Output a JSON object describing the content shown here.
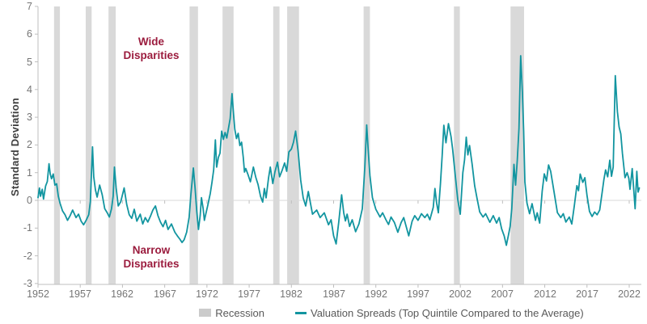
{
  "colors": {
    "line_teal": "#1295A0",
    "recession_gray": "#D9D9D9",
    "legend_swatch_gray": "#CBCBCB",
    "annotation_maroon": "#9B1C3E",
    "axis_line": "#BFBFBF",
    "tick_label": "#757575",
    "axis_title": "#3F3F3F",
    "legend_text": "#595959",
    "zero_line": "#D9D9D9",
    "background": "#FFFFFF"
  },
  "legend": {
    "recession_label": "Recession",
    "series_label": "Valuation Spreads (Top Quintile Compared to the Average)"
  },
  "annotations": {
    "wide": {
      "line1": "Wide",
      "line2": "Disparities"
    },
    "narrow": {
      "line1": "Narrow",
      "line2": "Disparities"
    }
  },
  "chart_data": {
    "type": "line",
    "title": "",
    "xlabel": "",
    "ylabel": "Standard Deviation",
    "ylim": [
      -3,
      7
    ],
    "y_ticks": [
      7,
      6,
      5,
      4,
      3,
      2,
      1,
      0,
      -1,
      -2,
      -3
    ],
    "xlim": [
      1952,
      2023.5
    ],
    "x_ticks": [
      1952,
      1957,
      1962,
      1967,
      1972,
      1977,
      1982,
      1987,
      1992,
      1997,
      2002,
      2007,
      2012,
      2017,
      2022
    ],
    "grid": "zero-line-only",
    "legend_position": "bottom",
    "recession_bands": [
      [
        1953.9,
        1954.6
      ],
      [
        1957.65,
        1958.35
      ],
      [
        1960.35,
        1961.2
      ],
      [
        1969.95,
        1970.95
      ],
      [
        1973.85,
        1975.15
      ],
      [
        1979.85,
        1980.6
      ],
      [
        1981.5,
        1982.9
      ],
      [
        1990.55,
        1991.3
      ],
      [
        2001.25,
        2001.95
      ],
      [
        2007.95,
        2009.55
      ]
    ],
    "series": [
      {
        "name": "Valuation Spreads (Top Quintile Compared to the Average)",
        "color_key": "line_teal",
        "points": [
          [
            1952.0,
            0.1
          ],
          [
            1952.17,
            0.45
          ],
          [
            1952.3,
            0.15
          ],
          [
            1952.5,
            0.4
          ],
          [
            1952.65,
            0.05
          ],
          [
            1952.9,
            0.52
          ],
          [
            1953.1,
            0.68
          ],
          [
            1953.3,
            1.32
          ],
          [
            1953.45,
            0.95
          ],
          [
            1953.6,
            0.78
          ],
          [
            1953.8,
            0.95
          ],
          [
            1954.0,
            0.55
          ],
          [
            1954.2,
            0.6
          ],
          [
            1954.4,
            0.15
          ],
          [
            1954.6,
            -0.1
          ],
          [
            1954.9,
            -0.38
          ],
          [
            1955.2,
            -0.52
          ],
          [
            1955.5,
            -0.72
          ],
          [
            1955.8,
            -0.55
          ],
          [
            1956.1,
            -0.35
          ],
          [
            1956.5,
            -0.62
          ],
          [
            1956.8,
            -0.5
          ],
          [
            1957.1,
            -0.75
          ],
          [
            1957.4,
            -0.88
          ],
          [
            1957.7,
            -0.72
          ],
          [
            1958.0,
            -0.52
          ],
          [
            1958.2,
            -0.05
          ],
          [
            1958.45,
            1.93
          ],
          [
            1958.6,
            0.85
          ],
          [
            1958.8,
            0.38
          ],
          [
            1959.0,
            0.12
          ],
          [
            1959.3,
            0.55
          ],
          [
            1959.6,
            0.2
          ],
          [
            1959.9,
            -0.3
          ],
          [
            1960.2,
            -0.45
          ],
          [
            1960.45,
            -0.6
          ],
          [
            1960.7,
            -0.3
          ],
          [
            1960.9,
            0.15
          ],
          [
            1961.05,
            1.2
          ],
          [
            1961.25,
            0.45
          ],
          [
            1961.5,
            -0.2
          ],
          [
            1961.8,
            -0.05
          ],
          [
            1962.2,
            0.45
          ],
          [
            1962.5,
            -0.15
          ],
          [
            1962.8,
            -0.52
          ],
          [
            1963.1,
            -0.65
          ],
          [
            1963.4,
            -0.32
          ],
          [
            1963.7,
            -0.75
          ],
          [
            1964.1,
            -0.5
          ],
          [
            1964.4,
            -0.85
          ],
          [
            1964.7,
            -0.62
          ],
          [
            1965.0,
            -0.78
          ],
          [
            1965.3,
            -0.58
          ],
          [
            1965.6,
            -0.35
          ],
          [
            1965.9,
            -0.2
          ],
          [
            1966.2,
            -0.55
          ],
          [
            1966.5,
            -0.78
          ],
          [
            1966.8,
            -0.95
          ],
          [
            1967.1,
            -0.72
          ],
          [
            1967.4,
            -1.05
          ],
          [
            1967.8,
            -0.85
          ],
          [
            1968.2,
            -1.15
          ],
          [
            1968.5,
            -1.28
          ],
          [
            1968.8,
            -1.4
          ],
          [
            1969.05,
            -1.52
          ],
          [
            1969.3,
            -1.42
          ],
          [
            1969.6,
            -1.15
          ],
          [
            1969.9,
            -0.6
          ],
          [
            1970.1,
            0.2
          ],
          [
            1970.4,
            1.17
          ],
          [
            1970.6,
            0.45
          ],
          [
            1970.8,
            -0.4
          ],
          [
            1971.0,
            -1.05
          ],
          [
            1971.2,
            -0.55
          ],
          [
            1971.35,
            0.1
          ],
          [
            1971.55,
            -0.3
          ],
          [
            1971.7,
            -0.72
          ],
          [
            1971.9,
            -0.45
          ],
          [
            1972.1,
            -0.18
          ],
          [
            1972.4,
            0.25
          ],
          [
            1972.6,
            0.65
          ],
          [
            1972.8,
            1.1
          ],
          [
            1973.0,
            2.18
          ],
          [
            1973.15,
            1.2
          ],
          [
            1973.35,
            1.55
          ],
          [
            1973.55,
            1.7
          ],
          [
            1973.75,
            2.5
          ],
          [
            1973.95,
            2.2
          ],
          [
            1974.15,
            2.45
          ],
          [
            1974.35,
            2.25
          ],
          [
            1974.55,
            2.6
          ],
          [
            1974.75,
            2.95
          ],
          [
            1974.97,
            3.85
          ],
          [
            1975.15,
            3.1
          ],
          [
            1975.3,
            2.57
          ],
          [
            1975.5,
            2.23
          ],
          [
            1975.7,
            2.42
          ],
          [
            1975.9,
            1.98
          ],
          [
            1976.1,
            2.1
          ],
          [
            1976.3,
            1.55
          ],
          [
            1976.45,
            1.02
          ],
          [
            1976.6,
            1.15
          ],
          [
            1976.9,
            0.9
          ],
          [
            1977.15,
            0.67
          ],
          [
            1977.5,
            1.2
          ],
          [
            1977.8,
            0.82
          ],
          [
            1978.05,
            0.58
          ],
          [
            1978.35,
            0.14
          ],
          [
            1978.6,
            -0.06
          ],
          [
            1978.8,
            0.43
          ],
          [
            1979.0,
            0.09
          ],
          [
            1979.3,
            0.82
          ],
          [
            1979.5,
            1.2
          ],
          [
            1979.8,
            0.61
          ],
          [
            1980.05,
            1.02
          ],
          [
            1980.35,
            1.38
          ],
          [
            1980.6,
            0.85
          ],
          [
            1980.9,
            1.08
          ],
          [
            1981.2,
            1.35
          ],
          [
            1981.45,
            1.05
          ],
          [
            1981.7,
            1.75
          ],
          [
            1982.0,
            1.85
          ],
          [
            1982.25,
            2.1
          ],
          [
            1982.5,
            2.5
          ],
          [
            1982.8,
            1.78
          ],
          [
            1983.1,
            0.73
          ],
          [
            1983.4,
            0.09
          ],
          [
            1983.7,
            -0.2
          ],
          [
            1984.0,
            0.32
          ],
          [
            1984.5,
            -0.5
          ],
          [
            1985.0,
            -0.35
          ],
          [
            1985.4,
            -0.62
          ],
          [
            1985.9,
            -0.45
          ],
          [
            1986.4,
            -0.88
          ],
          [
            1986.7,
            -0.7
          ],
          [
            1987.0,
            -1.28
          ],
          [
            1987.3,
            -1.57
          ],
          [
            1987.6,
            -0.8
          ],
          [
            1987.95,
            0.2
          ],
          [
            1988.2,
            -0.45
          ],
          [
            1988.4,
            -0.74
          ],
          [
            1988.6,
            -0.5
          ],
          [
            1988.9,
            -0.94
          ],
          [
            1989.2,
            -0.7
          ],
          [
            1989.6,
            -1.13
          ],
          [
            1990.0,
            -0.85
          ],
          [
            1990.4,
            -0.3
          ],
          [
            1990.7,
            1.2
          ],
          [
            1990.92,
            2.72
          ],
          [
            1991.1,
            1.8
          ],
          [
            1991.3,
            0.9
          ],
          [
            1991.6,
            0.1
          ],
          [
            1992.0,
            -0.32
          ],
          [
            1992.5,
            -0.6
          ],
          [
            1992.8,
            -0.45
          ],
          [
            1993.2,
            -0.7
          ],
          [
            1993.5,
            -0.87
          ],
          [
            1993.8,
            -0.6
          ],
          [
            1994.2,
            -0.8
          ],
          [
            1994.6,
            -1.15
          ],
          [
            1995.0,
            -0.8
          ],
          [
            1995.3,
            -0.62
          ],
          [
            1995.9,
            -1.28
          ],
          [
            1996.3,
            -0.75
          ],
          [
            1996.6,
            -0.55
          ],
          [
            1997.0,
            -0.72
          ],
          [
            1997.4,
            -0.48
          ],
          [
            1997.8,
            -0.62
          ],
          [
            1998.1,
            -0.5
          ],
          [
            1998.4,
            -0.7
          ],
          [
            1998.8,
            -0.25
          ],
          [
            1999.0,
            0.43
          ],
          [
            1999.2,
            -0.1
          ],
          [
            1999.4,
            -0.45
          ],
          [
            1999.65,
            0.6
          ],
          [
            1999.85,
            1.6
          ],
          [
            2000.05,
            2.71
          ],
          [
            2000.3,
            2.08
          ],
          [
            2000.6,
            2.77
          ],
          [
            2000.9,
            2.3
          ],
          [
            2001.1,
            1.84
          ],
          [
            2001.4,
            0.91
          ],
          [
            2001.7,
            0.03
          ],
          [
            2002.0,
            -0.5
          ],
          [
            2002.3,
            1.0
          ],
          [
            2002.5,
            1.46
          ],
          [
            2002.7,
            2.28
          ],
          [
            2002.9,
            1.64
          ],
          [
            2003.1,
            1.98
          ],
          [
            2003.4,
            1.3
          ],
          [
            2003.7,
            0.53
          ],
          [
            2004.0,
            0.05
          ],
          [
            2004.3,
            -0.42
          ],
          [
            2004.7,
            -0.6
          ],
          [
            2005.0,
            -0.48
          ],
          [
            2005.5,
            -0.79
          ],
          [
            2005.9,
            -0.55
          ],
          [
            2006.3,
            -0.82
          ],
          [
            2006.6,
            -0.62
          ],
          [
            2006.9,
            -1.03
          ],
          [
            2007.2,
            -1.28
          ],
          [
            2007.45,
            -1.62
          ],
          [
            2007.7,
            -1.25
          ],
          [
            2007.9,
            -0.93
          ],
          [
            2008.1,
            -0.3
          ],
          [
            2008.35,
            1.3
          ],
          [
            2008.55,
            0.55
          ],
          [
            2008.75,
            1.45
          ],
          [
            2008.95,
            2.6
          ],
          [
            2009.15,
            5.22
          ],
          [
            2009.35,
            3.9
          ],
          [
            2009.5,
            2.5
          ],
          [
            2009.65,
            0.67
          ],
          [
            2009.9,
            -0.1
          ],
          [
            2010.2,
            -0.48
          ],
          [
            2010.5,
            -0.12
          ],
          [
            2010.9,
            -0.72
          ],
          [
            2011.1,
            -0.45
          ],
          [
            2011.4,
            -0.82
          ],
          [
            2011.7,
            0.33
          ],
          [
            2011.95,
            0.96
          ],
          [
            2012.2,
            0.7
          ],
          [
            2012.45,
            1.28
          ],
          [
            2012.7,
            1.05
          ],
          [
            2013.1,
            0.3
          ],
          [
            2013.5,
            -0.44
          ],
          [
            2013.9,
            -0.62
          ],
          [
            2014.2,
            -0.48
          ],
          [
            2014.5,
            -0.78
          ],
          [
            2014.9,
            -0.6
          ],
          [
            2015.2,
            -0.85
          ],
          [
            2015.5,
            -0.2
          ],
          [
            2015.8,
            0.53
          ],
          [
            2016.0,
            0.35
          ],
          [
            2016.2,
            0.95
          ],
          [
            2016.5,
            0.65
          ],
          [
            2016.75,
            0.82
          ],
          [
            2017.0,
            0.18
          ],
          [
            2017.3,
            -0.4
          ],
          [
            2017.6,
            -0.58
          ],
          [
            2017.9,
            -0.42
          ],
          [
            2018.2,
            -0.52
          ],
          [
            2018.5,
            -0.35
          ],
          [
            2018.8,
            0.3
          ],
          [
            2019.0,
            0.75
          ],
          [
            2019.2,
            1.1
          ],
          [
            2019.45,
            0.85
          ],
          [
            2019.7,
            1.45
          ],
          [
            2019.9,
            0.87
          ],
          [
            2020.1,
            1.2
          ],
          [
            2020.35,
            4.5
          ],
          [
            2020.6,
            3.2
          ],
          [
            2020.8,
            2.65
          ],
          [
            2021.0,
            2.4
          ],
          [
            2021.2,
            1.7
          ],
          [
            2021.5,
            0.82
          ],
          [
            2021.75,
            1.0
          ],
          [
            2021.95,
            0.8
          ],
          [
            2022.1,
            0.4
          ],
          [
            2022.35,
            1.15
          ],
          [
            2022.55,
            0.35
          ],
          [
            2022.7,
            -0.3
          ],
          [
            2022.9,
            1.05
          ],
          [
            2023.05,
            0.3
          ],
          [
            2023.2,
            0.45
          ]
        ]
      }
    ]
  }
}
